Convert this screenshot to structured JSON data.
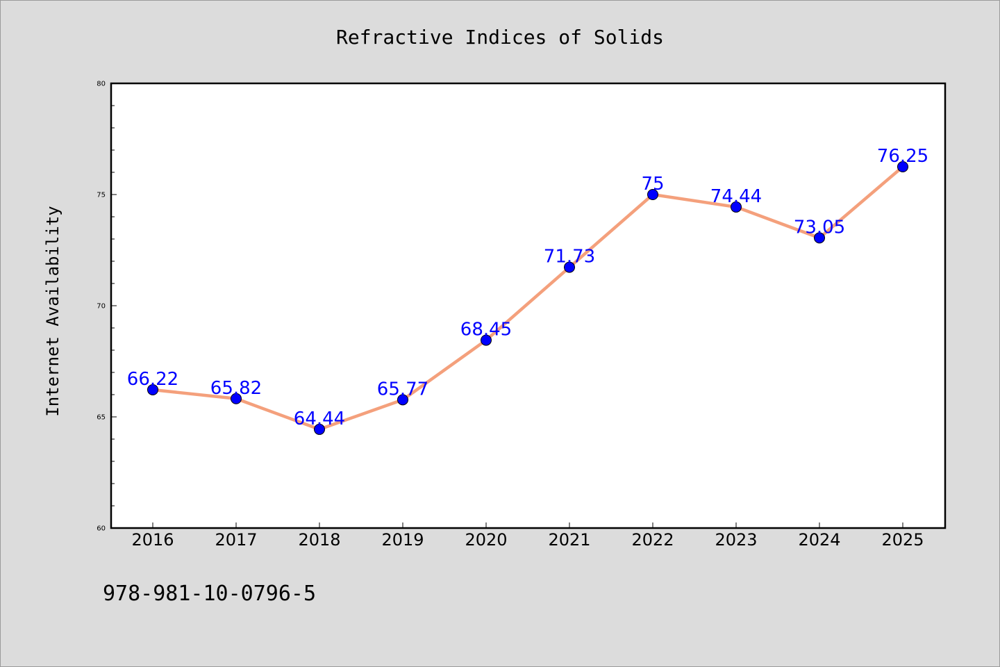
{
  "chart_data": {
    "type": "line",
    "title": "Refractive Indices of Solids",
    "ylabel": "Internet Availability",
    "xlabel": "",
    "categories": [
      "2016",
      "2017",
      "2018",
      "2019",
      "2020",
      "2021",
      "2022",
      "2023",
      "2024",
      "2025"
    ],
    "values": [
      66.22,
      65.82,
      64.44,
      65.77,
      68.45,
      71.73,
      75,
      74.44,
      73.05,
      76.25
    ],
    "data_labels": [
      "66.22",
      "65.82",
      "64.44",
      "65.77",
      "68.45",
      "71.73",
      "75",
      "74.44",
      "73.05",
      "76.25"
    ],
    "ylim": [
      60,
      80
    ],
    "yticks": [
      60,
      65,
      70,
      75,
      80
    ],
    "grid": false,
    "line_color": "#f4a07c",
    "marker_color": "#0000ff",
    "label_color": "#0000ff"
  },
  "footer": {
    "isbn": "978-981-10-0796-5"
  }
}
